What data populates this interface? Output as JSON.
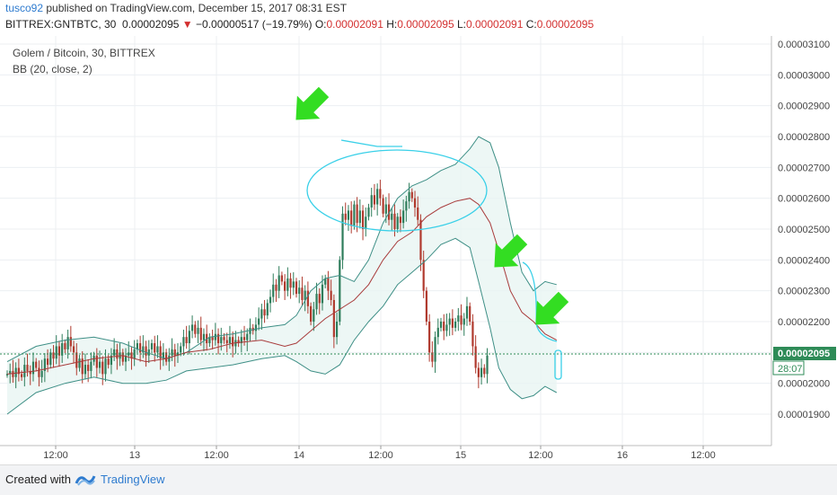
{
  "header": {
    "user": "tusco92",
    "published": " published on TradingView.com, December 15, 2017 08:31 EST",
    "symbol": "BITTREX:GNTBTC, 30",
    "last": "0.00002095",
    "change_arrow": "▼",
    "change": "−0.00000517 (−19.79%)",
    "o_label": "O:",
    "o_value": "0.00002091",
    "h_label": "H:",
    "h_value": "0.00002095",
    "l_label": "L:",
    "l_value": "0.00002091",
    "c_label": "C:",
    "c_value": "0.00002095"
  },
  "legend": {
    "title": "Golem / Bitcoin, 30, BITTREX",
    "indicator": "BB (20, close, 2)"
  },
  "price_axis": {
    "labels": [
      "0.00003100",
      "0.00003000",
      "0.00002900",
      "0.00002800",
      "0.00002700",
      "0.00002600",
      "0.00002500",
      "0.00002400",
      "0.00002300",
      "0.00002200",
      "0.00002100",
      "0.00002000",
      "0.00001900"
    ],
    "current_price": "0.00002095",
    "countdown": "28:07"
  },
  "time_axis": {
    "labels": [
      "12:00",
      "13",
      "12:00",
      "14",
      "12:00",
      "15",
      "12:00",
      "16",
      "12:00"
    ]
  },
  "footer": {
    "created_with": "Created with",
    "brand": "TradingView"
  },
  "colors": {
    "up": "#2e7d5b",
    "down": "#b03a2e",
    "band": "#3e8f86",
    "band_fill": "#e8f5f2",
    "basis": "#a83b3b",
    "annotation": "#3ad0e8",
    "arrow": "#33dd22",
    "price_line": "#2e8b57"
  },
  "chart_data": {
    "type": "candlestick",
    "title": "Golem / Bitcoin, 30, BITTREX",
    "indicator": "BB (20, close, 2)",
    "ylim": [
      1.8e-05,
      3.12e-05
    ],
    "y_ticks": [
      3.1e-05,
      3e-05,
      2.9e-05,
      2.8e-05,
      2.7e-05,
      2.6e-05,
      2.5e-05,
      2.4e-05,
      2.3e-05,
      2.2e-05,
      2.1e-05,
      2e-05,
      1.9e-05
    ],
    "x_ticks": [
      "12:00",
      "13",
      "12:00",
      "14",
      "12:00",
      "15",
      "12:00",
      "16",
      "12:00"
    ],
    "bars_per_day": 48,
    "series": [
      {
        "name": "BB upper",
        "points": [
          [
            0,
            2.07
          ],
          [
            10,
            2.12
          ],
          [
            20,
            2.14
          ],
          [
            30,
            2.15
          ],
          [
            40,
            2.13
          ],
          [
            48,
            2.1
          ],
          [
            55,
            2.08
          ],
          [
            62,
            2.1
          ],
          [
            70,
            2.15
          ],
          [
            78,
            2.16
          ],
          [
            88,
            2.18
          ],
          [
            96,
            2.19
          ],
          [
            100,
            2.22
          ],
          [
            105,
            2.3
          ],
          [
            110,
            2.34
          ],
          [
            115,
            2.35
          ],
          [
            120,
            2.33
          ],
          [
            125,
            2.4
          ],
          [
            130,
            2.52
          ],
          [
            135,
            2.6
          ],
          [
            140,
            2.64
          ],
          [
            145,
            2.66
          ],
          [
            150,
            2.69
          ],
          [
            155,
            2.71
          ],
          [
            160,
            2.76
          ],
          [
            163,
            2.8
          ],
          [
            167,
            2.78
          ],
          [
            170,
            2.7
          ],
          [
            174,
            2.52
          ],
          [
            178,
            2.36
          ],
          [
            182,
            2.3
          ],
          [
            186,
            2.33
          ],
          [
            190,
            2.32
          ]
        ]
      },
      {
        "name": "BB basis",
        "points": [
          [
            0,
            2.03
          ],
          [
            10,
            2.04
          ],
          [
            20,
            2.06
          ],
          [
            30,
            2.08
          ],
          [
            40,
            2.09
          ],
          [
            48,
            2.07
          ],
          [
            55,
            2.08
          ],
          [
            62,
            2.1
          ],
          [
            70,
            2.11
          ],
          [
            78,
            2.13
          ],
          [
            88,
            2.14
          ],
          [
            96,
            2.12
          ],
          [
            100,
            2.13
          ],
          [
            105,
            2.17
          ],
          [
            110,
            2.21
          ],
          [
            115,
            2.24
          ],
          [
            120,
            2.27
          ],
          [
            125,
            2.32
          ],
          [
            130,
            2.4
          ],
          [
            135,
            2.46
          ],
          [
            140,
            2.49
          ],
          [
            145,
            2.54
          ],
          [
            150,
            2.57
          ],
          [
            155,
            2.59
          ],
          [
            160,
            2.6
          ],
          [
            163,
            2.58
          ],
          [
            167,
            2.52
          ],
          [
            170,
            2.43
          ],
          [
            174,
            2.3
          ],
          [
            178,
            2.23
          ],
          [
            182,
            2.2
          ],
          [
            186,
            2.16
          ],
          [
            190,
            2.14
          ]
        ]
      },
      {
        "name": "BB lower",
        "points": [
          [
            0,
            1.9
          ],
          [
            10,
            1.97
          ],
          [
            20,
            2.0
          ],
          [
            30,
            2.02
          ],
          [
            40,
            2.0
          ],
          [
            48,
            2.0
          ],
          [
            55,
            2.01
          ],
          [
            62,
            2.04
          ],
          [
            70,
            2.05
          ],
          [
            78,
            2.06
          ],
          [
            88,
            2.08
          ],
          [
            96,
            2.09
          ],
          [
            100,
            2.07
          ],
          [
            105,
            2.04
          ],
          [
            110,
            2.03
          ],
          [
            115,
            2.06
          ],
          [
            120,
            2.14
          ],
          [
            125,
            2.2
          ],
          [
            130,
            2.25
          ],
          [
            135,
            2.32
          ],
          [
            140,
            2.36
          ],
          [
            145,
            2.4
          ],
          [
            150,
            2.45
          ],
          [
            155,
            2.47
          ],
          [
            160,
            2.44
          ],
          [
            163,
            2.33
          ],
          [
            167,
            2.18
          ],
          [
            170,
            2.05
          ],
          [
            174,
            1.98
          ],
          [
            178,
            1.95
          ],
          [
            182,
            1.96
          ],
          [
            186,
            1.99
          ],
          [
            190,
            1.97
          ]
        ]
      }
    ],
    "candles_close_1e5": [
      2.03,
      2.04,
      2.02,
      2.05,
      2.03,
      2.02,
      2.06,
      2.04,
      2.03,
      2.07,
      2.05,
      2.02,
      2.04,
      2.08,
      2.06,
      2.1,
      2.08,
      2.12,
      2.09,
      2.13,
      2.11,
      2.15,
      2.12,
      2.1,
      2.05,
      2.08,
      2.03,
      2.06,
      2.04,
      2.07,
      2.09,
      2.05,
      2.07,
      2.03,
      2.08,
      2.06,
      2.09,
      2.11,
      2.08,
      2.1,
      2.07,
      2.09,
      2.1,
      2.08,
      2.11,
      2.13,
      2.1,
      2.12,
      2.09,
      2.11,
      2.13,
      2.1,
      2.12,
      2.08,
      2.1,
      2.07,
      2.09,
      2.11,
      2.09,
      2.1,
      2.12,
      2.15,
      2.13,
      2.17,
      2.19,
      2.16,
      2.18,
      2.14,
      2.16,
      2.13,
      2.15,
      2.14,
      2.16,
      2.13,
      2.15,
      2.14,
      2.13,
      2.15,
      2.12,
      2.14,
      2.13,
      2.15,
      2.14,
      2.16,
      2.18,
      2.17,
      2.19,
      2.21,
      2.24,
      2.22,
      2.26,
      2.28,
      2.32,
      2.3,
      2.35,
      2.33,
      2.3,
      2.34,
      2.31,
      2.33,
      2.29,
      2.31,
      2.27,
      2.3,
      2.25,
      2.2,
      2.24,
      2.29,
      2.26,
      2.32,
      2.34,
      2.3,
      2.27,
      2.15,
      2.2,
      2.4,
      2.55,
      2.53,
      2.56,
      2.51,
      2.58,
      2.52,
      2.56,
      2.5,
      2.54,
      2.57,
      2.61,
      2.58,
      2.63,
      2.6,
      2.55,
      2.58,
      2.53,
      2.55,
      2.5,
      2.54,
      2.52,
      2.56,
      2.59,
      2.62,
      2.6,
      2.57,
      2.53,
      2.4,
      2.3,
      2.2,
      2.1,
      2.07,
      2.15,
      2.18,
      2.2,
      2.17,
      2.19,
      2.21,
      2.18,
      2.2,
      2.22,
      2.19,
      2.21,
      2.25,
      2.2,
      2.12,
      2.05,
      2.02,
      2.05,
      2.03,
      2.09
    ]
  }
}
